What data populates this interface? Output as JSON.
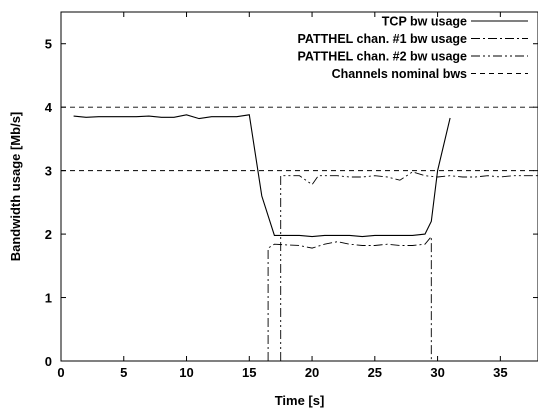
{
  "chart_data": {
    "type": "line",
    "xlabel": "Time [s]",
    "ylabel": "Bandwidth usage [Mb/s]",
    "xlim": [
      0,
      38
    ],
    "ylim": [
      0,
      5.5
    ],
    "xticks": [
      "0",
      "5",
      "10",
      "15",
      "20",
      "25",
      "30",
      "35"
    ],
    "yticks": [
      "0",
      "1",
      "2",
      "3",
      "4",
      "5"
    ],
    "grid": false,
    "legend_position": "top-right",
    "series": [
      {
        "name": "TCP bw usage",
        "style": "solid",
        "x": [
          1,
          2,
          3,
          4,
          5,
          6,
          7,
          8,
          9,
          10,
          11,
          12,
          13,
          14,
          15,
          16,
          17,
          18,
          19,
          20,
          21,
          22,
          23,
          24,
          25,
          26,
          27,
          28,
          29,
          29.5,
          30,
          31
        ],
        "y": [
          3.86,
          3.84,
          3.85,
          3.85,
          3.85,
          3.85,
          3.86,
          3.84,
          3.84,
          3.88,
          3.82,
          3.85,
          3.85,
          3.85,
          3.88,
          2.6,
          1.98,
          1.98,
          1.98,
          1.96,
          1.98,
          1.98,
          1.98,
          1.96,
          1.98,
          1.98,
          1.98,
          1.98,
          2.0,
          2.2,
          3.0,
          3.83
        ]
      },
      {
        "name": "PATTHEL chan. #1 bw usage",
        "style": "dashdot",
        "x": [
          16.5,
          16.5,
          17,
          18,
          19,
          20,
          21,
          22,
          23,
          24,
          25,
          26,
          27,
          28,
          29,
          29.5,
          29.5
        ],
        "y": [
          0,
          1.78,
          1.84,
          1.83,
          1.82,
          1.78,
          1.84,
          1.88,
          1.84,
          1.82,
          1.82,
          1.84,
          1.82,
          1.82,
          1.84,
          1.96,
          0
        ]
      },
      {
        "name": "PATTHEL chan. #2 bw usage",
        "style": "dashdotdot",
        "x": [
          17.5,
          17.5,
          18,
          19,
          20,
          20.5,
          21,
          22,
          23,
          24,
          25,
          26,
          27,
          28,
          29,
          30,
          31,
          32,
          33,
          34,
          35,
          36,
          37,
          38
        ],
        "y": [
          0,
          2.92,
          2.92,
          2.92,
          2.78,
          2.92,
          2.92,
          2.92,
          2.9,
          2.9,
          2.92,
          2.9,
          2.85,
          2.98,
          2.92,
          2.9,
          2.92,
          2.9,
          2.9,
          2.92,
          2.9,
          2.92,
          2.92,
          2.92
        ]
      },
      {
        "name": "Channels nominal bws",
        "style": "dashed",
        "hlines": [
          4,
          3
        ]
      }
    ]
  }
}
